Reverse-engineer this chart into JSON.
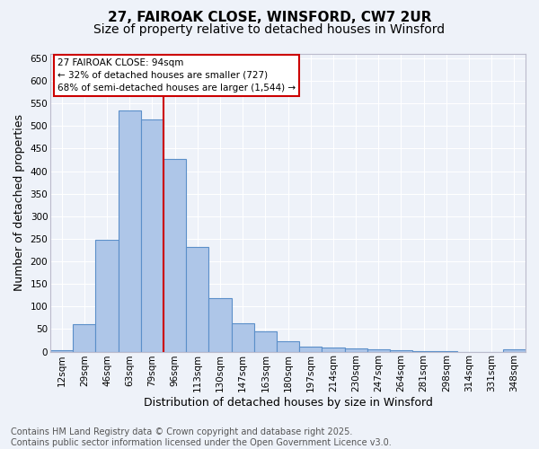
{
  "title1": "27, FAIROAK CLOSE, WINSFORD, CW7 2UR",
  "title2": "Size of property relative to detached houses in Winsford",
  "xlabel": "Distribution of detached houses by size in Winsford",
  "ylabel": "Number of detached properties",
  "categories": [
    "12sqm",
    "29sqm",
    "46sqm",
    "63sqm",
    "79sqm",
    "96sqm",
    "113sqm",
    "130sqm",
    "147sqm",
    "163sqm",
    "180sqm",
    "197sqm",
    "214sqm",
    "230sqm",
    "247sqm",
    "264sqm",
    "281sqm",
    "298sqm",
    "314sqm",
    "331sqm",
    "348sqm"
  ],
  "values": [
    3,
    60,
    248,
    535,
    515,
    427,
    232,
    119,
    62,
    45,
    22,
    11,
    9,
    7,
    6,
    4,
    1,
    1,
    0,
    0,
    5
  ],
  "bar_color": "#aec6e8",
  "bar_edge_color": "#5b8fc9",
  "vline_index": 4.5,
  "vline_color": "#cc0000",
  "annotation_box_text": "27 FAIROAK CLOSE: 94sqm\n← 32% of detached houses are smaller (727)\n68% of semi-detached houses are larger (1,544) →",
  "annotation_box_facecolor": "white",
  "annotation_box_edgecolor": "#cc0000",
  "ylim": [
    0,
    660
  ],
  "yticks": [
    0,
    50,
    100,
    150,
    200,
    250,
    300,
    350,
    400,
    450,
    500,
    550,
    600,
    650
  ],
  "footer_text": "Contains HM Land Registry data © Crown copyright and database right 2025.\nContains public sector information licensed under the Open Government Licence v3.0.",
  "bg_color": "#eef2f9",
  "grid_color": "white",
  "title_fontsize": 11,
  "subtitle_fontsize": 10,
  "tick_fontsize": 7.5,
  "ylabel_fontsize": 9,
  "xlabel_fontsize": 9,
  "footer_fontsize": 7
}
